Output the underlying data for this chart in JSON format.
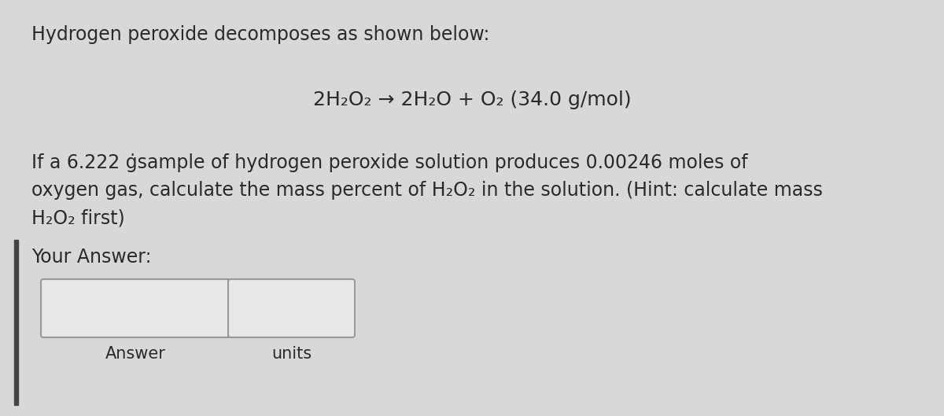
{
  "bg_color": "#d8d8d8",
  "text_color": "#2a2a2a",
  "title_line": "Hydrogen peroxide decomposes as shown below:",
  "equation_line": "2H₂O₂ → 2H₂O + O₂ (34.0 g/mol)",
  "body_line1": "If a 6.222 ġsample of hydrogen peroxide solution produces 0.00246 moles of",
  "body_line2": "oxygen gas, calculate the mass percent of H₂O₂ in the solution. (Hint: calculate mass",
  "body_line3": "H₂O₂ first)",
  "your_answer_label": "Your Answer:",
  "answer_label": "Answer",
  "units_label": "units",
  "left_bar_color": "#444444",
  "box_edge_color": "#999999",
  "box_face_color": "#e8e8e8",
  "font_size_title": 17,
  "font_size_eq": 18,
  "font_size_body": 17,
  "font_size_label": 17,
  "font_size_box_label": 15,
  "fig_width": 12.0,
  "fig_height": 5.29,
  "dpi": 100
}
